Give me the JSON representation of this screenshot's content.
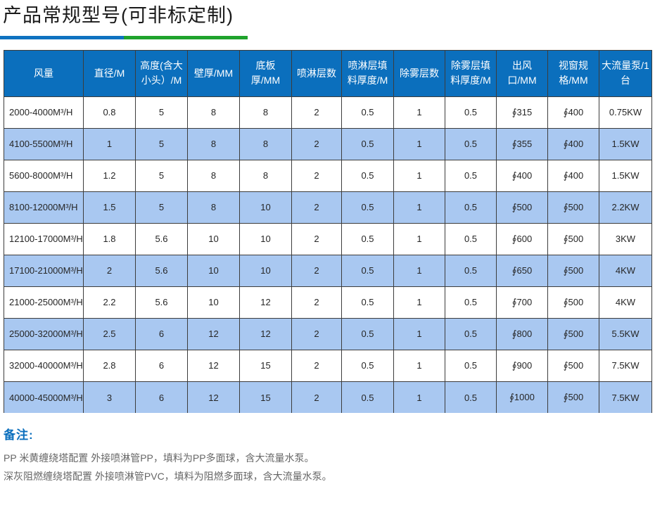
{
  "page": {
    "title": "产品常规型号(可非标定制)",
    "accent_blue": "#0f72c0",
    "accent_green": "#1fa32c"
  },
  "chart_data": {
    "type": "table",
    "title": "产品常规型号(可非标定制)",
    "columns": [
      "风量",
      "直径/M",
      "高度(含大小头）/M",
      "壁厚/MM",
      "底板厚/MM",
      "喷淋层数",
      "喷淋层填料厚度/M",
      "除雾层数",
      "除雾层填料厚度/M",
      "出风口/MM",
      "视窗规格/MM",
      "大流量泵/1台"
    ],
    "rows": [
      [
        "2000-4000M³/H",
        "0.8",
        "5",
        "8",
        "8",
        "2",
        "0.5",
        "1",
        "0.5",
        "∮315",
        "∮400",
        "0.75KW"
      ],
      [
        "4100-5500M³/H",
        "1",
        "5",
        "8",
        "8",
        "2",
        "0.5",
        "1",
        "0.5",
        "∮355",
        "∮400",
        "1.5KW"
      ],
      [
        "5600-8000M³/H",
        "1.2",
        "5",
        "8",
        "8",
        "2",
        "0.5",
        "1",
        "0.5",
        "∮400",
        "∮400",
        "1.5KW"
      ],
      [
        "8100-12000M³/H",
        "1.5",
        "5",
        "8",
        "10",
        "2",
        "0.5",
        "1",
        "0.5",
        "∮500",
        "∮500",
        "2.2KW"
      ],
      [
        "12100-17000M³/H",
        "1.8",
        "5.6",
        "10",
        "10",
        "2",
        "0.5",
        "1",
        "0.5",
        "∮600",
        "∮500",
        "3KW"
      ],
      [
        "17100-21000M³/H",
        "2",
        "5.6",
        "10",
        "10",
        "2",
        "0.5",
        "1",
        "0.5",
        "∮650",
        "∮500",
        "4KW"
      ],
      [
        "21000-25000M³/H",
        "2.2",
        "5.6",
        "10",
        "12",
        "2",
        "0.5",
        "1",
        "0.5",
        "∮700",
        "∮500",
        "4KW"
      ],
      [
        "25000-32000M³/H",
        "2.5",
        "6",
        "12",
        "12",
        "2",
        "0.5",
        "1",
        "0.5",
        "∮800",
        "∮500",
        "5.5KW"
      ],
      [
        "32000-40000M³/H",
        "2.8",
        "6",
        "12",
        "15",
        "2",
        "0.5",
        "1",
        "0.5",
        "∮900",
        "∮500",
        "7.5KW"
      ],
      [
        "40000-45000M³/H",
        "3",
        "6",
        "12",
        "15",
        "2",
        "0.5",
        "1",
        "0.5",
        "∮1000",
        "∮500",
        "7.5KW"
      ]
    ],
    "style": {
      "header_bg": "#0b6fbd",
      "header_text": "#ffffff",
      "alt_row_bg": "#a9c8f1",
      "border_color": "#3c3c3c"
    },
    "layout_hints": {
      "alternating_rows": true,
      "first_column_align": "left",
      "other_columns_align": "center"
    }
  },
  "notes": {
    "label": "备注:",
    "lines": [
      "PP 米黄缠绕塔配置 外接喷淋管PP，填料为PP多面球，含大流量水泵。",
      "深灰阻燃缠绕塔配置 外接喷淋管PVC，填料为阻燃多面球，含大流量水泵。"
    ]
  }
}
